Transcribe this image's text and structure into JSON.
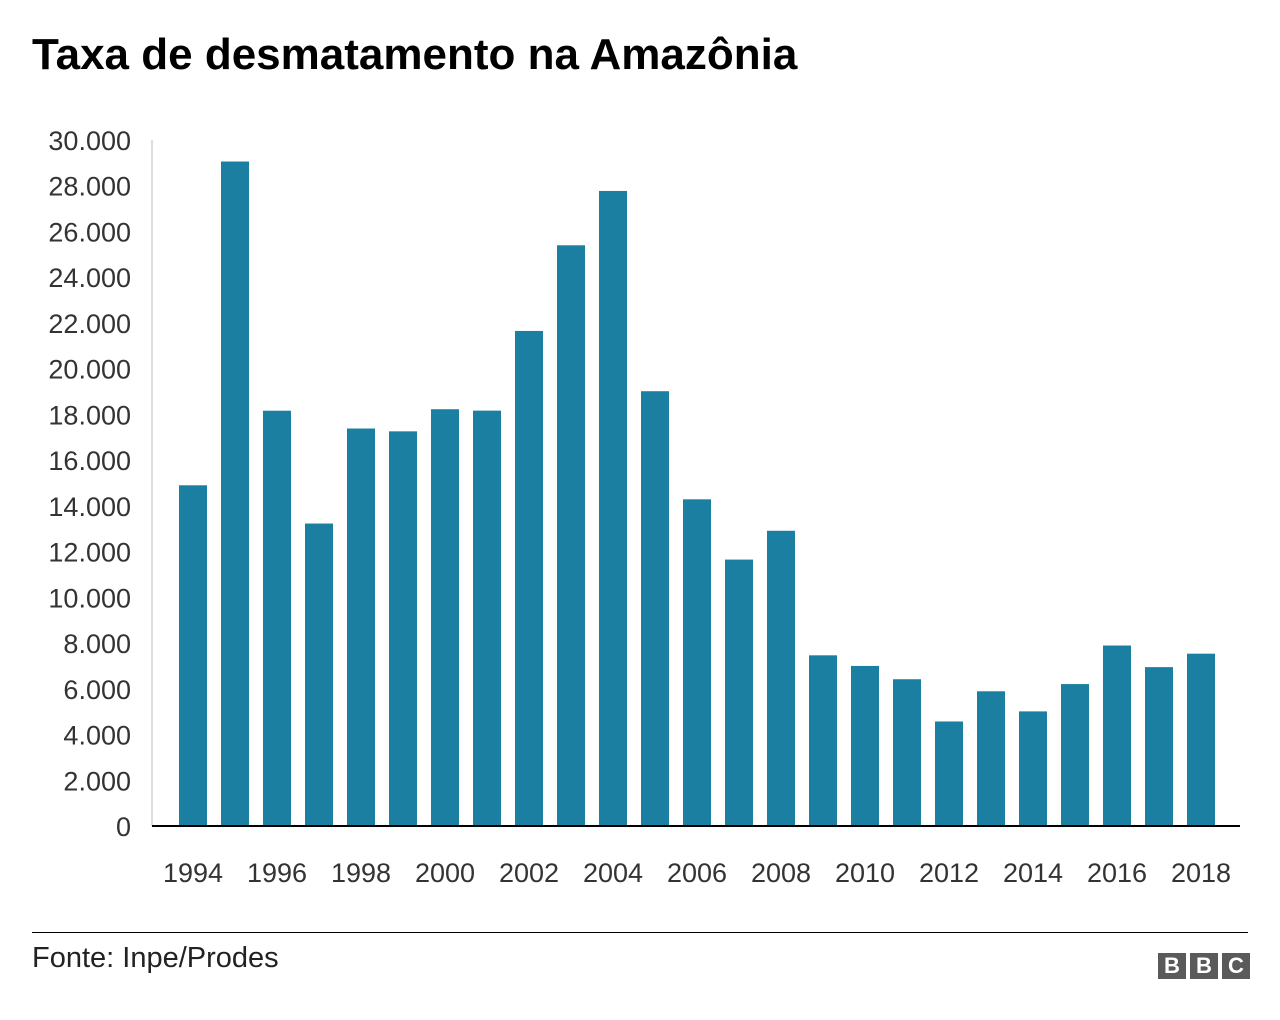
{
  "chart_data": {
    "type": "bar",
    "title": "Taxa de desmatamento na Amazônia",
    "categories": [
      "1994",
      "1995",
      "1996",
      "1997",
      "1998",
      "1999",
      "2000",
      "2001",
      "2002",
      "2003",
      "2004",
      "2005",
      "2006",
      "2007",
      "2008",
      "2009",
      "2010",
      "2011",
      "2012",
      "2013",
      "2014",
      "2015",
      "2016",
      "2017",
      "2018"
    ],
    "values": [
      14900,
      29059,
      18161,
      13227,
      17383,
      17259,
      18226,
      18165,
      21650,
      25396,
      27772,
      19014,
      14286,
      11651,
      12911,
      7464,
      7000,
      6418,
      4571,
      5891,
      5012,
      6207,
      7893,
      6947,
      7536
    ],
    "x_tick_labels": [
      "1994",
      "1996",
      "1998",
      "2000",
      "2002",
      "2004",
      "2006",
      "2008",
      "2010",
      "2012",
      "2014",
      "2016",
      "2018"
    ],
    "y_ticks": [
      0,
      2000,
      4000,
      6000,
      8000,
      10000,
      12000,
      14000,
      16000,
      18000,
      20000,
      22000,
      24000,
      26000,
      28000,
      30000
    ],
    "y_tick_labels": [
      "0",
      "2.000",
      "4.000",
      "6.000",
      "8.000",
      "10.000",
      "12.000",
      "14.000",
      "16.000",
      "18.000",
      "20.000",
      "22.000",
      "24.000",
      "26.000",
      "28.000",
      "30.000"
    ],
    "ylim": [
      0,
      30000
    ],
    "xlabel": "",
    "ylabel": "",
    "grid": false,
    "legend": "none",
    "bar_color": "#1a7fa1"
  },
  "footer": {
    "source": "Fonte: Inpe/Prodes",
    "logo": [
      "B",
      "B",
      "C"
    ]
  }
}
